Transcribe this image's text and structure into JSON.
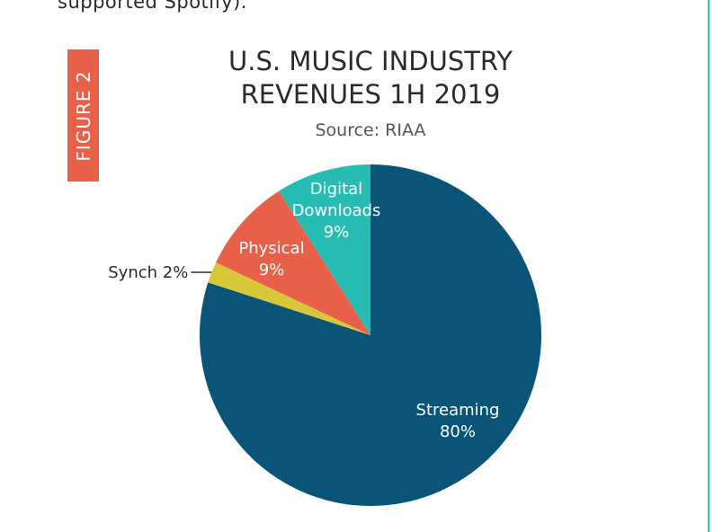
{
  "page": {
    "top_text": "supported Spotify)."
  },
  "figure_badge": "FIGURE 2",
  "chart_data": {
    "type": "pie",
    "title": [
      "U.S. MUSIC INDUSTRY",
      "REVENUES 1H 2019"
    ],
    "subtitle": "Source: RIAA",
    "slices": [
      {
        "name": "Streaming",
        "value": 80,
        "label_lines": [
          "Streaming",
          "80%"
        ],
        "color": "#0a5577",
        "label_position": "inside"
      },
      {
        "name": "Synch",
        "value": 2,
        "label_lines": [
          "Synch 2%"
        ],
        "color": "#d9c73a",
        "label_position": "outside-left"
      },
      {
        "name": "Physical",
        "value": 9,
        "label_lines": [
          "Physical",
          "9%"
        ],
        "color": "#e8604a",
        "label_position": "inside"
      },
      {
        "name": "Digital Downloads",
        "value": 9,
        "label_lines": [
          "Digital",
          "Downloads",
          "9%"
        ],
        "color": "#27bcb3",
        "label_position": "inside"
      }
    ],
    "start": "12 o'clock",
    "direction": "clockwise"
  },
  "colors": {
    "badge": "#e8604a",
    "rule": "#2ec4b6"
  }
}
